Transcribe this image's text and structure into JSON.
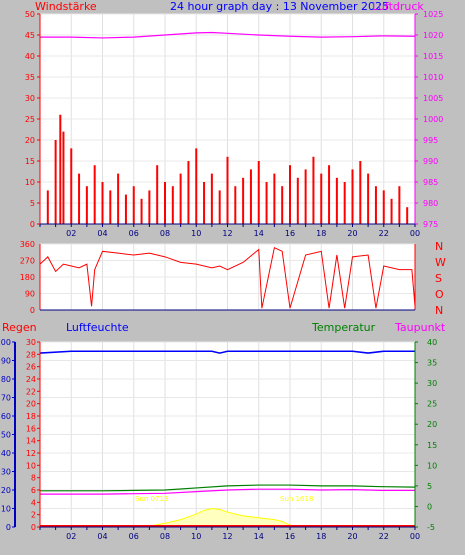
{
  "header": {
    "left_label": "Windstärke",
    "title": "24 hour graph day : 13 November 2025",
    "right_label": "Luftdruck"
  },
  "compass": [
    "N",
    "W",
    "S",
    "O",
    "N"
  ],
  "lower_labels": {
    "regen": "Regen",
    "luftfeuchte": "Luftfeuchte",
    "temperatur": "Temperatur",
    "taupunkt": "Taupunkt"
  },
  "sun": {
    "rise": "Sun 0713",
    "set": "Sun 1618"
  },
  "colors": {
    "wind": "#ff0000",
    "pressure": "#ff00ff",
    "direction": "#ff0000",
    "humidity": "#0000ff",
    "temperature": "#008000",
    "dewpoint": "#ff00ff",
    "rain": "#ff0000",
    "solar": "#ffff00",
    "axis_blue": "#0000c0"
  },
  "x_tick_labels": [
    "02",
    "04",
    "06",
    "08",
    "10",
    "12",
    "14",
    "16",
    "18",
    "20",
    "22",
    "00"
  ],
  "chart_data": [
    {
      "type": "bar",
      "title": "Windstärke / Luftdruck",
      "x_range": [
        0,
        24
      ],
      "ylim_left": [
        0,
        50
      ],
      "yticks_left": [
        0,
        5,
        10,
        15,
        20,
        25,
        30,
        35,
        40,
        45,
        50
      ],
      "ylim_right": [
        975,
        1025
      ],
      "yticks_right": [
        975,
        980,
        985,
        990,
        995,
        1000,
        1005,
        1010,
        1015,
        1020,
        1025
      ],
      "series": [
        {
          "name": "Windstärke",
          "axis": "left",
          "style": "bars",
          "x": [
            0.5,
            1,
            1.3,
            1.5,
            2,
            2.5,
            3,
            3.5,
            4,
            4.5,
            5,
            5.5,
            6,
            6.5,
            7,
            7.5,
            8,
            8.5,
            9,
            9.5,
            10,
            10.5,
            11,
            11.5,
            12,
            12.5,
            13,
            13.5,
            14,
            14.5,
            15,
            15.5,
            16,
            16.5,
            17,
            17.5,
            18,
            18.5,
            19,
            19.5,
            20,
            20.5,
            21,
            21.5,
            22,
            22.5,
            23,
            23.5
          ],
          "values": [
            8,
            20,
            26,
            22,
            18,
            12,
            9,
            14,
            10,
            8,
            12,
            7,
            9,
            6,
            8,
            14,
            10,
            9,
            12,
            15,
            18,
            10,
            12,
            8,
            16,
            9,
            11,
            13,
            15,
            10,
            12,
            9,
            14,
            11,
            13,
            16,
            12,
            14,
            11,
            10,
            13,
            15,
            12,
            9,
            8,
            6,
            9,
            4
          ]
        },
        {
          "name": "Luftdruck",
          "axis": "right",
          "style": "line",
          "x": [
            0,
            2,
            4,
            6,
            8,
            10,
            11,
            12,
            14,
            16,
            18,
            20,
            22,
            24
          ],
          "values": [
            1019.5,
            1019.5,
            1019.3,
            1019.5,
            1020,
            1020.5,
            1020.6,
            1020.4,
            1020,
            1019.7,
            1019.5,
            1019.6,
            1019.8,
            1019.7
          ]
        }
      ]
    },
    {
      "type": "line",
      "title": "Windrichtung",
      "x_range": [
        0,
        24
      ],
      "ylim": [
        0,
        360
      ],
      "yticks": [
        0,
        90,
        180,
        270,
        360
      ],
      "series": [
        {
          "name": "Windrichtung",
          "x": [
            0,
            0.5,
            1,
            1.5,
            2,
            2.5,
            3,
            3.3,
            3.5,
            4,
            5,
            6,
            7,
            7.5,
            8,
            9,
            10,
            11,
            11.5,
            12,
            13,
            14,
            14.2,
            15,
            15.5,
            16,
            17,
            18,
            18.5,
            19,
            19.5,
            20,
            21,
            21.5,
            22,
            23,
            23.8,
            24
          ],
          "values": [
            250,
            290,
            210,
            250,
            240,
            230,
            250,
            20,
            220,
            320,
            310,
            300,
            310,
            300,
            290,
            260,
            250,
            230,
            240,
            220,
            260,
            330,
            10,
            340,
            320,
            10,
            300,
            320,
            10,
            300,
            10,
            290,
            300,
            10,
            240,
            220,
            220,
            20
          ]
        }
      ]
    },
    {
      "type": "line",
      "title": "Regen / Luftfeuchte / Temperatur / Taupunkt",
      "x_range": [
        0,
        24
      ],
      "ylim_rain": [
        0,
        30
      ],
      "yticks_rain": [
        0,
        2,
        4,
        6,
        8,
        10,
        12,
        14,
        16,
        18,
        20,
        22,
        24,
        26,
        28,
        30
      ],
      "ylim_humidity": [
        0,
        100
      ],
      "yticks_humidity": [
        0,
        10,
        20,
        30,
        40,
        50,
        60,
        70,
        80,
        90,
        100
      ],
      "ylim_temp": [
        -5,
        40
      ],
      "yticks_temp": [
        -5,
        0,
        5,
        10,
        15,
        20,
        25,
        30,
        35,
        40
      ],
      "series": [
        {
          "name": "Luftfeuchte",
          "axis": "humidity",
          "x": [
            0,
            2,
            4,
            6,
            8,
            10,
            11,
            11.5,
            12,
            14,
            16,
            18,
            20,
            21,
            22,
            24
          ],
          "values": [
            94,
            95,
            95,
            95,
            95,
            95,
            95,
            94,
            95,
            95,
            95,
            95,
            95,
            94,
            95,
            95
          ]
        },
        {
          "name": "Temperatur",
          "axis": "temp",
          "x": [
            0,
            2,
            4,
            6,
            8,
            10,
            12,
            14,
            16,
            18,
            20,
            22,
            24
          ],
          "values": [
            3.8,
            3.8,
            3.8,
            3.9,
            4,
            4.5,
            5,
            5.2,
            5.2,
            5,
            5,
            4.8,
            4.7
          ]
        },
        {
          "name": "Taupunkt",
          "axis": "temp",
          "x": [
            0,
            2,
            4,
            6,
            8,
            10,
            12,
            14,
            16,
            18,
            20,
            22,
            24
          ],
          "values": [
            3,
            3,
            3,
            3.1,
            3.2,
            3.6,
            4,
            4.2,
            4.2,
            4,
            4.1,
            3.9,
            3.9
          ]
        },
        {
          "name": "Regen",
          "axis": "rain",
          "x": [
            0,
            24
          ],
          "values": [
            0,
            0
          ]
        },
        {
          "name": "Solar",
          "axis": "humidity",
          "x": [
            6.5,
            7,
            8,
            9,
            10,
            10.5,
            11,
            11.5,
            12,
            13,
            14,
            15,
            15.5,
            16,
            16.3
          ],
          "values": [
            0,
            0.5,
            2,
            4,
            7,
            9,
            10,
            9.5,
            8,
            6,
            5,
            4,
            3,
            1,
            0
          ]
        }
      ]
    }
  ]
}
